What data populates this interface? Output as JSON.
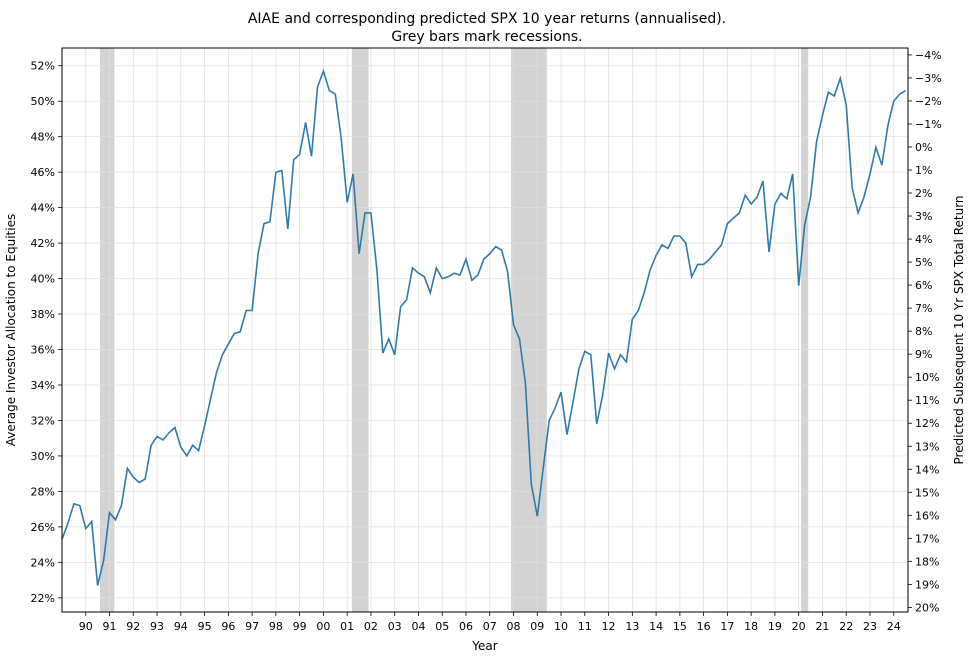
{
  "chart_data": {
    "type": "line",
    "title": "AIAE and corresponding predicted SPX 10 year returns (annualised).",
    "subtitle": "Grey bars mark recessions.",
    "xlabel": "Year",
    "ylabel": "Average Investor Allocation to Equities",
    "y2label": "Predicted Subsequent 10 Yr SPX Total Return",
    "xlim": [
      1989.0,
      2024.6
    ],
    "ylim": [
      21.2,
      53.0
    ],
    "y2lim": [
      -4.3,
      20.2
    ],
    "grid": true,
    "x_tick_values": [
      1990,
      1991,
      1992,
      1993,
      1994,
      1995,
      1996,
      1997,
      1998,
      1999,
      2000,
      2001,
      2002,
      2003,
      2004,
      2005,
      2006,
      2007,
      2008,
      2009,
      2010,
      2011,
      2012,
      2013,
      2014,
      2015,
      2016,
      2017,
      2018,
      2019,
      2020,
      2021,
      2022,
      2023,
      2024
    ],
    "x_tick_labels": [
      "90",
      "91",
      "92",
      "93",
      "94",
      "95",
      "96",
      "97",
      "98",
      "99",
      "00",
      "01",
      "02",
      "03",
      "04",
      "05",
      "06",
      "07",
      "08",
      "09",
      "10",
      "11",
      "12",
      "13",
      "14",
      "15",
      "16",
      "17",
      "18",
      "19",
      "20",
      "21",
      "22",
      "23",
      "24"
    ],
    "y_tick_values": [
      22,
      24,
      26,
      28,
      30,
      32,
      34,
      36,
      38,
      40,
      42,
      44,
      46,
      48,
      50,
      52
    ],
    "y_tick_labels": [
      "22%",
      "24%",
      "26%",
      "28%",
      "30%",
      "32%",
      "34%",
      "36%",
      "38%",
      "40%",
      "42%",
      "44%",
      "46%",
      "48%",
      "50%",
      "52%"
    ],
    "y2_tick_values": [
      -4,
      -3,
      -2,
      -1,
      0,
      1,
      2,
      3,
      4,
      5,
      6,
      7,
      8,
      9,
      10,
      11,
      12,
      13,
      14,
      15,
      16,
      17,
      18,
      19,
      20
    ],
    "y2_tick_labels": [
      "−4%",
      "−3%",
      "−2%",
      "−1%",
      "0%",
      "1%",
      "2%",
      "3%",
      "4%",
      "5%",
      "6%",
      "7%",
      "8%",
      "9%",
      "10%",
      "11%",
      "12%",
      "13%",
      "14%",
      "15%",
      "16%",
      "17%",
      "18%",
      "19%",
      "20%"
    ],
    "recessions": [
      [
        1990.6,
        1991.2
      ],
      [
        2001.2,
        2001.9
      ],
      [
        2007.9,
        2009.4
      ],
      [
        2020.1,
        2020.4
      ]
    ],
    "line_color": "#2e7bab",
    "recession_color": "#c8c8c8",
    "series": [
      {
        "x": [
          1989.0,
          1989.25,
          1989.5,
          1989.75,
          1990.0,
          1990.25,
          1990.5,
          1990.75,
          1991.0,
          1991.25,
          1991.5,
          1991.75,
          1992.0,
          1992.25,
          1992.5,
          1992.75,
          1993.0,
          1993.25,
          1993.5,
          1993.75,
          1994.0,
          1994.25,
          1994.5,
          1994.75,
          1995.0,
          1995.25,
          1995.5,
          1995.75,
          1996.0,
          1996.25,
          1996.5,
          1996.75,
          1997.0,
          1997.25,
          1997.5,
          1997.75,
          1998.0,
          1998.25,
          1998.5,
          1998.75,
          1999.0,
          1999.25,
          1999.5,
          1999.75,
          2000.0,
          2000.25,
          2000.5,
          2000.75,
          2001.0,
          2001.25,
          2001.5,
          2001.75,
          2002.0,
          2002.25,
          2002.5,
          2002.75,
          2003.0,
          2003.25,
          2003.5,
          2003.75,
          2004.0,
          2004.25,
          2004.5,
          2004.75,
          2005.0,
          2005.25,
          2005.5,
          2005.75,
          2006.0,
          2006.25,
          2006.5,
          2006.75,
          2007.0,
          2007.25,
          2007.5,
          2007.75,
          2008.0,
          2008.25,
          2008.5,
          2008.75,
          2009.0,
          2009.25,
          2009.5,
          2009.75,
          2010.0,
          2010.25,
          2010.5,
          2010.75,
          2011.0,
          2011.25,
          2011.5,
          2011.75,
          2012.0,
          2012.25,
          2012.5,
          2012.75,
          2013.0,
          2013.25,
          2013.5,
          2013.75,
          2014.0,
          2014.25,
          2014.5,
          2014.75,
          2015.0,
          2015.25,
          2015.5,
          2015.75,
          2016.0,
          2016.25,
          2016.5,
          2016.75,
          2017.0,
          2017.25,
          2017.5,
          2017.75,
          2018.0,
          2018.25,
          2018.5,
          2018.75,
          2019.0,
          2019.25,
          2019.5,
          2019.75,
          2020.0,
          2020.25,
          2020.5,
          2020.75,
          2021.0,
          2021.25,
          2021.5,
          2021.75,
          2022.0,
          2022.25,
          2022.5,
          2022.75,
          2023.0,
          2023.25,
          2023.5,
          2023.75,
          2024.0,
          2024.25,
          2024.5
        ],
        "values": [
          25.3,
          26.2,
          27.3,
          27.2,
          25.9,
          26.3,
          22.7,
          24.1,
          26.8,
          26.4,
          27.2,
          29.3,
          28.8,
          28.5,
          28.7,
          30.6,
          31.1,
          30.9,
          31.3,
          31.6,
          30.5,
          30.0,
          30.6,
          30.3,
          31.7,
          33.2,
          34.7,
          35.7,
          36.3,
          36.9,
          37.0,
          38.2,
          38.2,
          41.4,
          43.1,
          43.2,
          46.0,
          46.1,
          42.8,
          46.7,
          47.0,
          48.8,
          46.9,
          50.8,
          51.7,
          50.6,
          50.4,
          47.9,
          44.3,
          45.9,
          41.4,
          43.7,
          43.7,
          40.5,
          35.8,
          36.6,
          35.7,
          38.4,
          38.8,
          40.6,
          40.3,
          40.1,
          39.2,
          40.6,
          40.0,
          40.1,
          40.3,
          40.2,
          41.1,
          39.9,
          40.2,
          41.1,
          41.4,
          41.8,
          41.6,
          40.4,
          37.4,
          36.6,
          34.1,
          28.4,
          26.6,
          29.3,
          32.0,
          32.7,
          33.6,
          31.2,
          33.0,
          34.9,
          35.9,
          35.7,
          31.8,
          33.4,
          35.8,
          34.9,
          35.7,
          35.3,
          37.7,
          38.2,
          39.2,
          40.5,
          41.3,
          41.9,
          41.7,
          42.4,
          42.4,
          42.0,
          40.1,
          40.8,
          40.8,
          41.1,
          41.5,
          41.9,
          43.1,
          43.4,
          43.7,
          44.7,
          44.2,
          44.6,
          45.5,
          41.5,
          44.2,
          44.8,
          44.5,
          45.9,
          39.6,
          43.0,
          44.6,
          47.7,
          49.2,
          50.5,
          50.3,
          51.3,
          49.8,
          45.1,
          43.7,
          44.6,
          45.9,
          47.4,
          46.4,
          48.6,
          50.0,
          50.4,
          50.6
        ]
      }
    ]
  }
}
